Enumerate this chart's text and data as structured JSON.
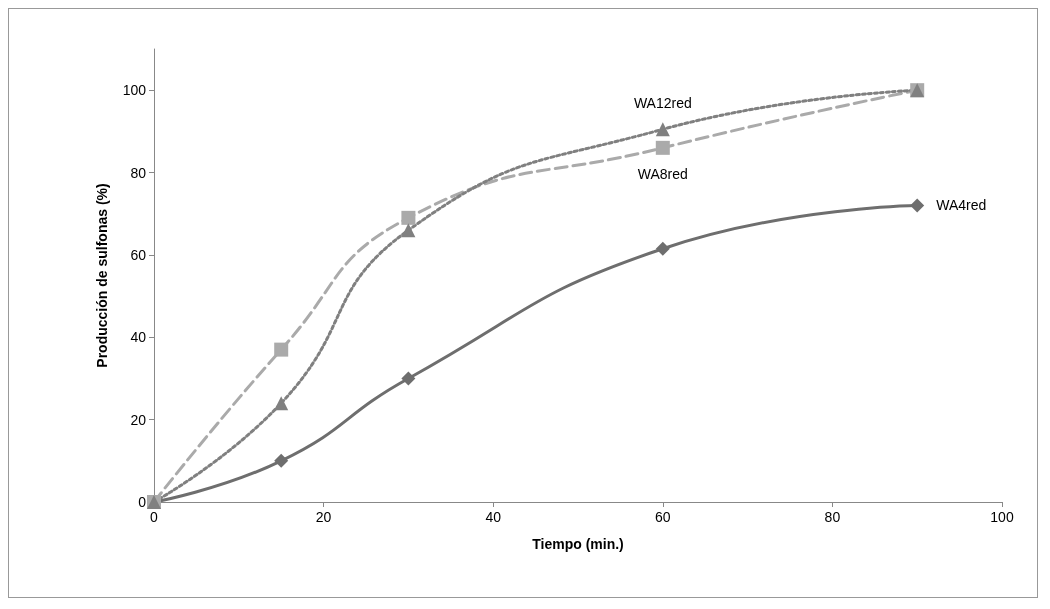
{
  "chart_data": {
    "type": "line",
    "xlabel": "Tiempo (min.)",
    "ylabel": "Producción de sulfonas (%)",
    "xlim": [
      0,
      100
    ],
    "xticks": [
      0,
      20,
      40,
      60,
      80,
      100
    ],
    "ylim": [
      0,
      110
    ],
    "yticks": [
      0,
      20,
      40,
      60,
      80,
      100
    ],
    "grid": false,
    "legend": false,
    "series": [
      {
        "name": "WA4red",
        "color": "#6e6e6e",
        "marker": "diamond",
        "line_style": "solid",
        "x": [
          0,
          15,
          30,
          60,
          90
        ],
        "values": [
          0,
          10,
          30,
          61.5,
          72
        ]
      },
      {
        "name": "WA8red",
        "color": "#aaaaaa",
        "marker": "square",
        "line_style": "dashed",
        "x": [
          0,
          15,
          30,
          60,
          90
        ],
        "values": [
          0,
          37,
          69,
          86,
          100
        ]
      },
      {
        "name": "WA12red",
        "color": "#808080",
        "marker": "triangle",
        "line_style": "dotted",
        "x": [
          0,
          15,
          30,
          60,
          90
        ],
        "values": [
          0,
          24,
          66,
          90.5,
          100
        ]
      }
    ]
  }
}
